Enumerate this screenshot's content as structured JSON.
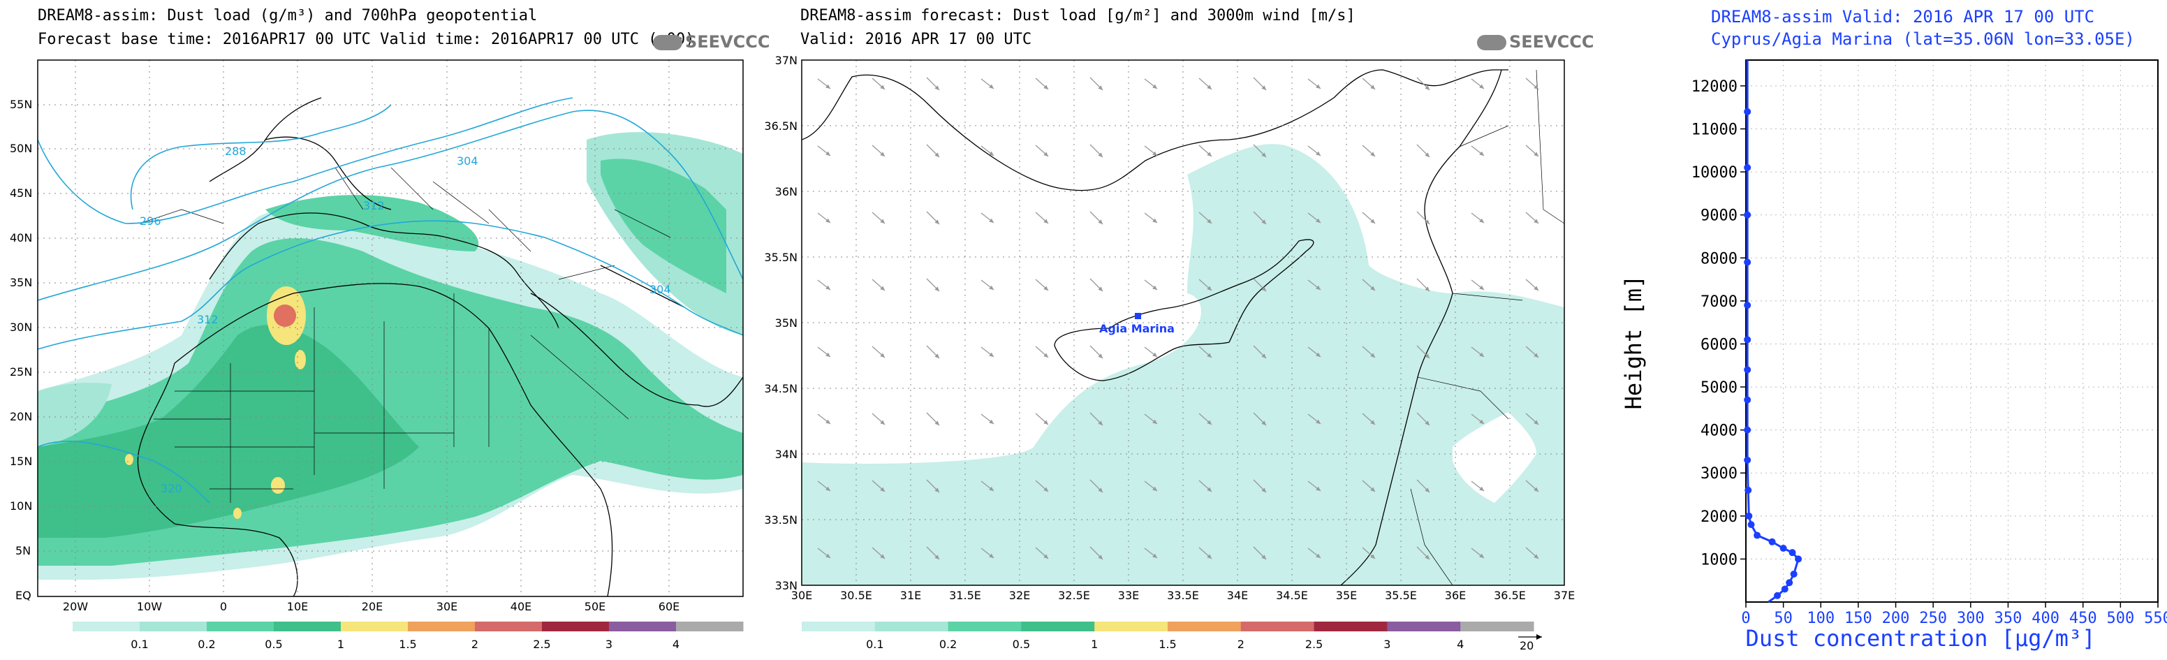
{
  "map1": {
    "title_line1": "DREAM8-assim: Dust load (g/m³) and 700hPa geopotential",
    "title_line2": "Forecast base time: 2016APR17 00 UTC  Valid time: 2016APR17 00 UTC  (+00)",
    "logo": "SEEVCCC",
    "lat_labels": [
      "55N",
      "50N",
      "45N",
      "40N",
      "35N",
      "30N",
      "25N",
      "20N",
      "15N",
      "10N",
      "5N",
      "EQ"
    ],
    "lon_labels": [
      "20W",
      "10W",
      "0",
      "10E",
      "20E",
      "30E",
      "40E",
      "50E",
      "60E"
    ],
    "contour_labels": [
      "288",
      "296",
      "304",
      "312",
      "312",
      "304",
      "320"
    ],
    "legend": {
      "labels": [
        "0.1",
        "0.2",
        "0.5",
        "1",
        "1.5",
        "2",
        "2.5",
        "3",
        "4"
      ],
      "colors": [
        "#c8efe9",
        "#a6e6d6",
        "#5bd3a6",
        "#3fbf8a",
        "#f5e57a",
        "#eea25c",
        "#d46a6a",
        "#a0283e",
        "#8a5ca0",
        "#aaaaaa"
      ]
    }
  },
  "map2": {
    "title_line1": "DREAM8-assim forecast: Dust load [g/m²] and 3000m wind [m/s]",
    "title_line2": "Valid: 2016 APR 17  00 UTC",
    "logo": "SEEVCCC",
    "lat_labels": [
      "37N",
      "36.5N",
      "36N",
      "35.5N",
      "35N",
      "34.5N",
      "34N",
      "33.5N",
      "33N"
    ],
    "lon_labels": [
      "30E",
      "30.5E",
      "31E",
      "31.5E",
      "32E",
      "32.5E",
      "33E",
      "33.5E",
      "34E",
      "34.5E",
      "35E",
      "35.5E",
      "36E",
      "36.5E",
      "37E"
    ],
    "station_label": "Agia Marina",
    "legend": {
      "labels": [
        "0.1",
        "0.2",
        "0.5",
        "1",
        "1.5",
        "2",
        "2.5",
        "3",
        "4"
      ],
      "colors": [
        "#c8efe9",
        "#a6e6d6",
        "#5bd3a6",
        "#3fbf8a",
        "#f5e57a",
        "#eea25c",
        "#d46a6a",
        "#a0283e",
        "#8a5ca0",
        "#aaaaaa"
      ]
    },
    "wind_ref": "20"
  },
  "chart_data": {
    "type": "line",
    "title_line1": "DREAM8-assim   Valid: 2016 APR 17   00 UTC",
    "title_line2": "Cyprus/Agia Marina (lat=35.06N lon=33.05E)",
    "xlabel": "Dust concentration [μg/m³]",
    "ylabel": "Height [m]",
    "xlim": [
      0,
      550
    ],
    "ylim": [
      0,
      12600
    ],
    "x_ticks": [
      0,
      50,
      100,
      150,
      200,
      250,
      300,
      350,
      400,
      450,
      500,
      550
    ],
    "y_ticks": [
      1000,
      2000,
      3000,
      4000,
      5000,
      6000,
      7000,
      8000,
      9000,
      10000,
      11000,
      12000
    ],
    "series": [
      {
        "color": "#1a3fff",
        "points": [
          {
            "x": 30,
            "y": 0
          },
          {
            "x": 42,
            "y": 150
          },
          {
            "x": 52,
            "y": 300
          },
          {
            "x": 58,
            "y": 450
          },
          {
            "x": 64,
            "y": 650
          },
          {
            "x": 70,
            "y": 1000
          },
          {
            "x": 62,
            "y": 1150
          },
          {
            "x": 50,
            "y": 1250
          },
          {
            "x": 35,
            "y": 1400
          },
          {
            "x": 15,
            "y": 1550
          },
          {
            "x": 7,
            "y": 1800
          },
          {
            "x": 4,
            "y": 2000
          },
          {
            "x": 3,
            "y": 2600
          },
          {
            "x": 2,
            "y": 3300
          },
          {
            "x": 2,
            "y": 4000
          },
          {
            "x": 2,
            "y": 4700
          },
          {
            "x": 2,
            "y": 5400
          },
          {
            "x": 2,
            "y": 6100
          },
          {
            "x": 2,
            "y": 6900
          },
          {
            "x": 2,
            "y": 7900
          },
          {
            "x": 2,
            "y": 9000
          },
          {
            "x": 2,
            "y": 10100
          },
          {
            "x": 2,
            "y": 11400
          },
          {
            "x": 2,
            "y": 12600
          }
        ]
      }
    ]
  }
}
